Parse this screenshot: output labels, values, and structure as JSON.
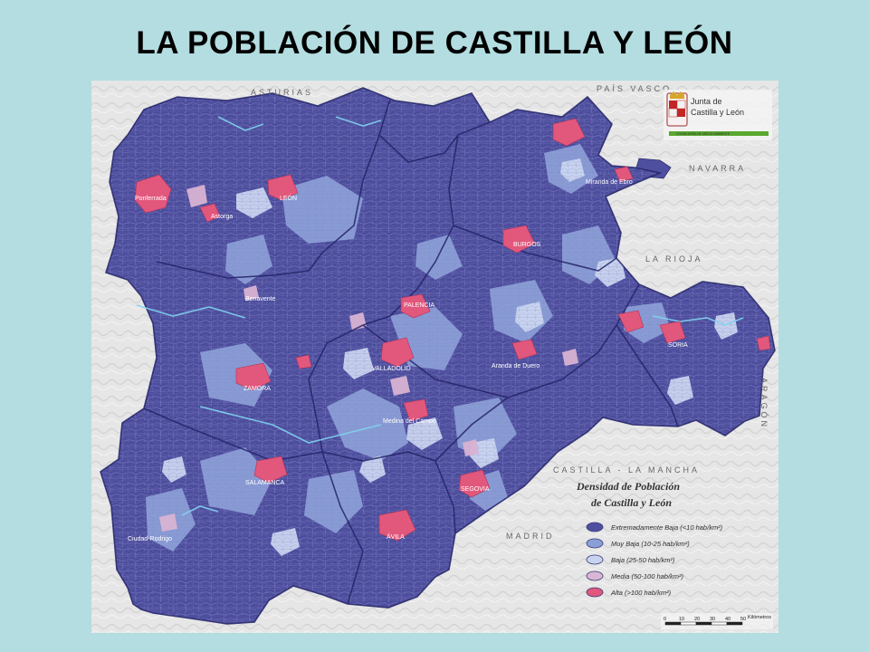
{
  "slide": {
    "title": "LA POBLACIÓN DE CASTILLA Y LEÓN"
  },
  "map": {
    "neighbours": {
      "asturias": "ASTURIAS",
      "pais_vasco": "PAÍS VASCO",
      "navarra": "NAVARRA",
      "la_rioja": "LA RIOJA",
      "aragon": "ARAGÓN",
      "castilla_la_mancha": "CASTILLA - LA MANCHA",
      "madrid": "MADRID"
    },
    "cities": {
      "ponferrada": "Ponferrada",
      "astorga": "Astorga",
      "leon": "LEÓN",
      "benavente": "Benavente",
      "palencia": "PALENCIA",
      "burgos": "BURGOS",
      "miranda": "Miranda de Ebro",
      "soria": "SORIA",
      "valladolid": "VALLADOLID",
      "aranda": "Aranda de Duero",
      "zamora": "ZAMORA",
      "medina": "Medina del Campo",
      "salamanca": "SALAMANCA",
      "segovia": "SEGOVIA",
      "avila": "ÁVILA",
      "ciudad_rodrigo": "Ciudad-Rodrigo"
    },
    "logo": {
      "line1": "Junta de",
      "line2": "Castilla y León",
      "subline": "CONSEJERÍA DE MEDIO AMBIENTE"
    },
    "legend": {
      "title_line1": "Densidad de Población",
      "title_line2": "de Castilla y León",
      "items": [
        {
          "label": "Extremadamente Baja",
          "detail": "(<10 hab/km²)",
          "color": "#4f4f9f"
        },
        {
          "label": "Muy Baja",
          "detail": "(10-25 hab/km²)",
          "color": "#8a9fd8"
        },
        {
          "label": "Baja",
          "detail": "(25-50 hab/km²)",
          "color": "#c7d3ef"
        },
        {
          "label": "Media",
          "detail": "(50-100 hab/km²)",
          "color": "#d9b6d3"
        },
        {
          "label": "Alta",
          "detail": "(>100 hab/km²)",
          "color": "#e2577c"
        }
      ]
    },
    "scale": {
      "ticks": [
        "0",
        "10",
        "20",
        "30",
        "40",
        "50"
      ],
      "unit": "Kilómetros"
    }
  }
}
